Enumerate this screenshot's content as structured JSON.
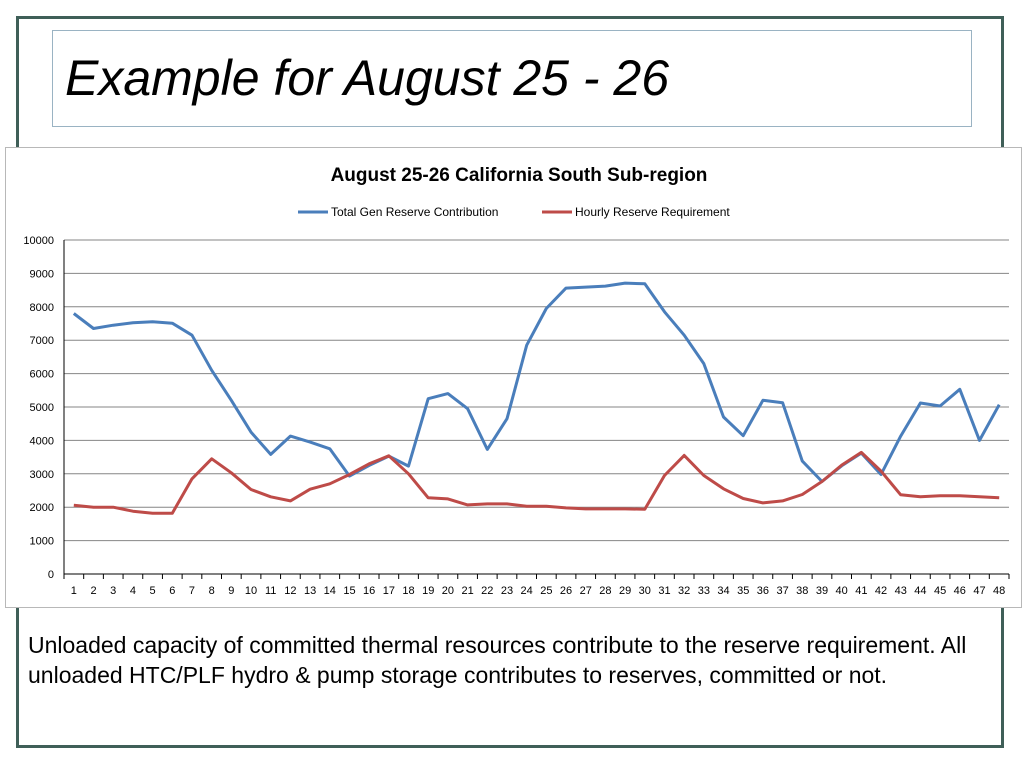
{
  "slide": {
    "title": "Example for August 25 - 26",
    "caption": "Unloaded capacity of committed thermal resources contribute to the reserve requirement.  All unloaded HTC/PLF hydro & pump storage contributes to reserves, committed or not."
  },
  "colors": {
    "frame": "#3f5f58",
    "series_blue": "#4a7ebb",
    "series_red": "#be4b48",
    "gridline": "#868686"
  },
  "chart_data": {
    "type": "line",
    "title": "August 25-26 California South Sub-region",
    "xlabel": "",
    "ylabel": "",
    "ylim": [
      0,
      10000
    ],
    "yticks": [
      0,
      1000,
      2000,
      3000,
      4000,
      5000,
      6000,
      7000,
      8000,
      9000,
      10000
    ],
    "grid": true,
    "legend_position": "top",
    "categories": [
      "1",
      "2",
      "3",
      "4",
      "5",
      "6",
      "7",
      "8",
      "9",
      "10",
      "11",
      "12",
      "13",
      "14",
      "15",
      "16",
      "17",
      "18",
      "19",
      "20",
      "21",
      "22",
      "23",
      "24",
      "25",
      "26",
      "27",
      "28",
      "29",
      "30",
      "31",
      "32",
      "33",
      "34",
      "35",
      "36",
      "37",
      "38",
      "39",
      "40",
      "41",
      "42",
      "43",
      "44",
      "45",
      "46",
      "47",
      "48"
    ],
    "series": [
      {
        "name": "Total Gen Reserve Contribution",
        "color": "#4a7ebb",
        "values": [
          7800,
          7350,
          7450,
          7520,
          7550,
          7510,
          7150,
          6100,
          5200,
          4250,
          3580,
          4130,
          3950,
          3750,
          2930,
          3250,
          3530,
          3230,
          5250,
          5400,
          4950,
          3730,
          4650,
          6850,
          7950,
          8560,
          8590,
          8620,
          8710,
          8690,
          7850,
          7150,
          6300,
          4700,
          4140,
          5200,
          5130,
          3380,
          2770,
          3240,
          3620,
          2980,
          4130,
          5120,
          5030,
          5530,
          4000,
          5070
        ]
      },
      {
        "name": "Hourly Reserve Requirement",
        "color": "#be4b48",
        "values": [
          2060,
          2000,
          2000,
          1880,
          1820,
          1820,
          2850,
          3450,
          3030,
          2530,
          2310,
          2190,
          2540,
          2700,
          2980,
          3300,
          3540,
          3000,
          2280,
          2250,
          2070,
          2100,
          2100,
          2030,
          2030,
          1980,
          1950,
          1950,
          1950,
          1940,
          2950,
          3550,
          2950,
          2550,
          2260,
          2130,
          2190,
          2380,
          2770,
          3260,
          3640,
          3080,
          2370,
          2310,
          2340,
          2340,
          2310,
          2280
        ]
      }
    ]
  }
}
